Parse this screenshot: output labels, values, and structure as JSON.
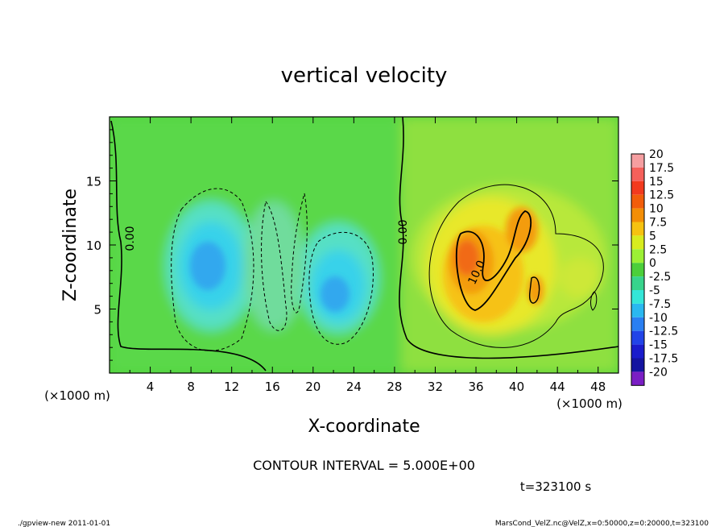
{
  "chart_data": {
    "type": "heatmap",
    "title": "vertical velocity",
    "xlabel": "X-coordinate",
    "ylabel": "Z-coordinate",
    "x_unit_left": "(×1000 m)",
    "x_unit_right": "(×1000 m)",
    "xlim": [
      0,
      50
    ],
    "ylim": [
      0,
      20
    ],
    "x_ticks": [
      4,
      8,
      12,
      16,
      20,
      24,
      28,
      32,
      36,
      40,
      44,
      48
    ],
    "y_ticks": [
      5,
      10,
      15
    ],
    "colorbar": {
      "levels": [
        "20",
        "17.5",
        "15",
        "12.5",
        "10",
        "7.5",
        "5",
        "2.5",
        "0",
        "-2.5",
        "-5",
        "-7.5",
        "-10",
        "-12.5",
        "-15",
        "-17.5",
        "-20"
      ],
      "colors": [
        "#f59ea0",
        "#f5605a",
        "#f23a1e",
        "#f25d0a",
        "#f38e06",
        "#f6c210",
        "#d8ec1e",
        "#9cf034",
        "#4ccf3a",
        "#38d48c",
        "#34e6d8",
        "#2ab8f0",
        "#2a7ff2",
        "#2244e8",
        "#1a1ccc",
        "#1414a0",
        "#7a1ec4"
      ]
    },
    "contour_labels": [
      "0.00",
      "0.00",
      "10.0"
    ],
    "contour_interval": "CONTOUR INTERVAL = 5.000E+00",
    "time": "t=323100 s"
  },
  "footer": {
    "left": "./gpview-new  2011-01-01",
    "right": "MarsCond_VelZ.nc@VelZ,x=0:50000,z=0:20000,t=323100"
  }
}
